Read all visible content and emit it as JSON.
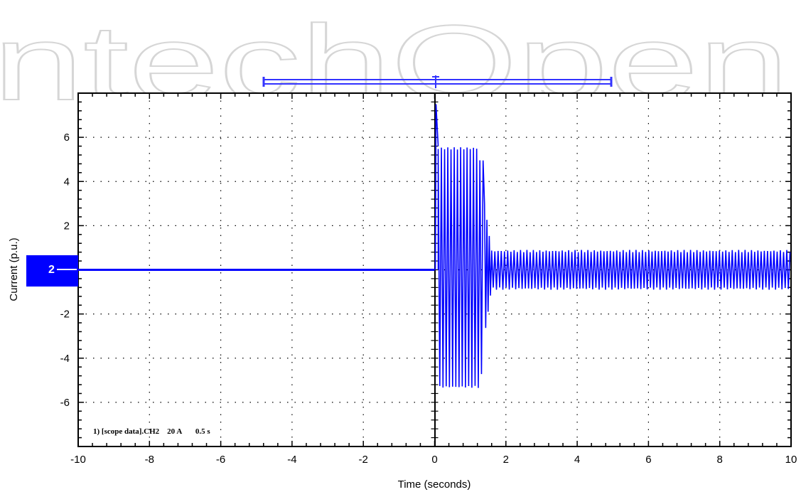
{
  "watermark": "ntechOpen",
  "colors": {
    "signal": "#0000ff",
    "marker_bg": "#0000ff",
    "marker_text": "#ffffff",
    "frame": "#000000",
    "grid": "#000000",
    "cursor_bar": "#3333ff",
    "watermark": "#d6d6d6"
  },
  "channel_marker": {
    "label": "2"
  },
  "scope_annotation": {
    "text": "1) [scope data].CH2    20 A       0.5 s"
  },
  "chart_data": {
    "type": "line",
    "xlabel": "Time (seconds)",
    "ylabel": "Current (p.u.)",
    "xlim": [
      -10,
      10
    ],
    "ylim": [
      -8,
      8
    ],
    "x_ticks": [
      -10,
      -8,
      -6,
      -4,
      -2,
      0,
      2,
      4,
      6,
      8,
      10
    ],
    "y_ticks": [
      -6,
      -4,
      -2,
      2,
      4,
      6
    ],
    "grid": true,
    "series": [
      {
        "segments": [
          {
            "t_start": -10,
            "t_end": 0,
            "kind": "flat",
            "value": 0
          },
          {
            "t_start": 0,
            "t_end": 0.1,
            "kind": "spike",
            "peak": 7.5
          },
          {
            "t_start": 0.1,
            "t_end": 1.4,
            "kind": "oscillation",
            "upper": 5.5,
            "lower": -5.3
          },
          {
            "t_start": 1.4,
            "t_end": 1.6,
            "kind": "transition"
          },
          {
            "t_start": 1.6,
            "t_end": 10,
            "kind": "oscillation",
            "upper": 0.85,
            "lower": -0.85
          }
        ]
      }
    ]
  }
}
